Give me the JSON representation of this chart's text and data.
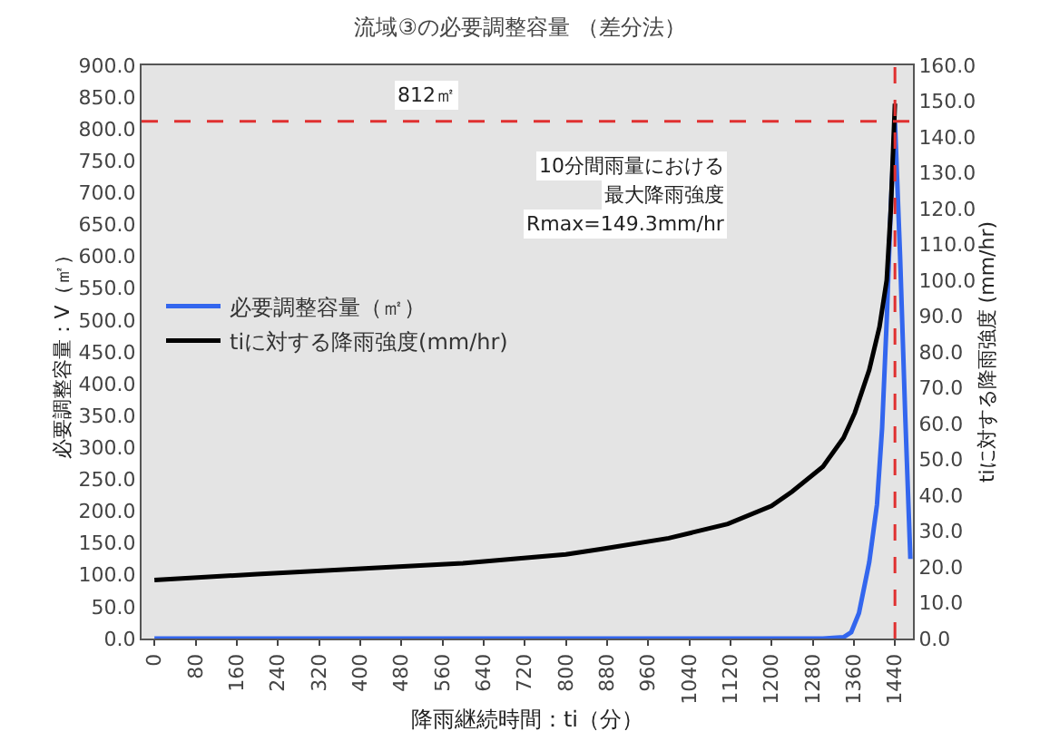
{
  "chart_data": {
    "type": "line",
    "title": "流域③の必要調整容量 （差分法）",
    "xlabel": "降雨継続時間：ti（分）",
    "ylabel": "必要調整容量：V（㎡）",
    "y2label": "tiに対する降雨強度 (mm/hr)",
    "xlim": [
      -25,
      1475
    ],
    "xticks": [
      0,
      80,
      160,
      240,
      320,
      400,
      480,
      560,
      640,
      720,
      800,
      880,
      960,
      1040,
      1120,
      1200,
      1280,
      1360,
      1440
    ],
    "ylim": [
      0,
      900
    ],
    "yticks": [
      {
        "value": 0,
        "label": "0.0"
      },
      {
        "value": 50,
        "label": "50.0"
      },
      {
        "value": 100,
        "label": "100.0"
      },
      {
        "value": 150,
        "label": "150.0"
      },
      {
        "value": 200,
        "label": "200.0"
      },
      {
        "value": 250,
        "label": "250.0"
      },
      {
        "value": 300,
        "label": "300.0"
      },
      {
        "value": 350,
        "label": "350.0"
      },
      {
        "value": 400,
        "label": "400.0"
      },
      {
        "value": 450,
        "label": "450.0"
      },
      {
        "value": 500,
        "label": "500.0"
      },
      {
        "value": 550,
        "label": "550.0"
      },
      {
        "value": 600,
        "label": "600.0"
      },
      {
        "value": 650,
        "label": "650.0"
      },
      {
        "value": 700,
        "label": "700.0"
      },
      {
        "value": 750,
        "label": "750.0"
      },
      {
        "value": 800,
        "label": "800.0"
      },
      {
        "value": 850,
        "label": "850.0"
      },
      {
        "value": 900,
        "label": "900.0"
      }
    ],
    "y2lim": [
      0,
      160
    ],
    "y2ticks": [
      {
        "value": 0,
        "label": "0.0"
      },
      {
        "value": 10,
        "label": "10.0"
      },
      {
        "value": 20,
        "label": "20.0"
      },
      {
        "value": 30,
        "label": "30.0"
      },
      {
        "value": 40,
        "label": "40.0"
      },
      {
        "value": 50,
        "label": "50.0"
      },
      {
        "value": 60,
        "label": "60.0"
      },
      {
        "value": 70,
        "label": "70.0"
      },
      {
        "value": 80,
        "label": "80.0"
      },
      {
        "value": 90,
        "label": "90.0"
      },
      {
        "value": 100,
        "label": "100.0"
      },
      {
        "value": 110,
        "label": "110.0"
      },
      {
        "value": 120,
        "label": "120.0"
      },
      {
        "value": 130,
        "label": "130.0"
      },
      {
        "value": 140,
        "label": "140.0"
      },
      {
        "value": 150,
        "label": "150.0"
      },
      {
        "value": 160,
        "label": "160.0"
      }
    ],
    "series": [
      {
        "name": "必要調整容量（㎡）",
        "color": "#3366ee",
        "x": [
          0,
          1300,
          1340,
          1355,
          1370,
          1390,
          1405,
          1415,
          1424,
          1432,
          1440,
          1450,
          1460,
          1470
        ],
        "values": [
          0,
          0,
          2,
          10,
          40,
          120,
          210,
          330,
          500,
          680,
          812,
          600,
          350,
          125
        ]
      },
      {
        "name": "tiに対する降雨強度(mm/hr)",
        "color": "#000000",
        "axis": "y2",
        "x": [
          0,
          200,
          400,
          600,
          800,
          870,
          1000,
          1115,
          1200,
          1240,
          1300,
          1340,
          1362,
          1390,
          1410,
          1424,
          1432,
          1440
        ],
        "values": [
          16.3,
          18,
          19.5,
          21,
          23.5,
          25,
          28,
          32,
          37,
          41,
          48,
          56,
          63,
          75,
          87,
          100,
          120,
          149.3
        ]
      }
    ],
    "ref_lines": [
      {
        "axis": "y",
        "value": 812,
        "label": "812㎡",
        "color": "#e03030",
        "line_style": "dashed"
      },
      {
        "axis": "x",
        "value": 1440,
        "color": "#e03030",
        "line_style": "dashed"
      }
    ],
    "annotations": [
      "10分間雨量における",
      "最大降雨強度",
      "Rmax=149.3mm/hr"
    ],
    "legend": "left",
    "grid": false,
    "line_style": "solid",
    "marker": "none"
  }
}
